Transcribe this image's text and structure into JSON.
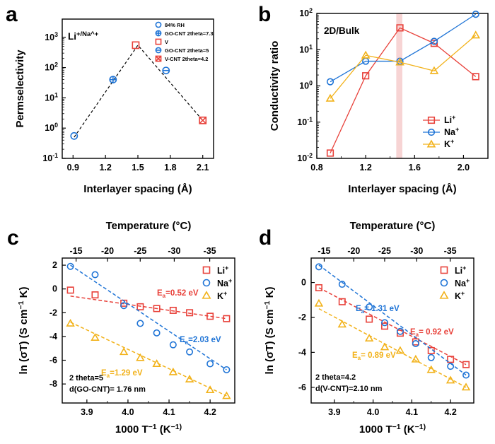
{
  "colors": {
    "li": "#e8413a",
    "na": "#1f74d6",
    "k": "#f2b21a",
    "highlight": "#f7d4d4",
    "frame": "#000000"
  },
  "chart_data": [
    {
      "panel": "a",
      "type": "scatter",
      "inset_title": "Li+/Na+",
      "xlabel": "Interlayer spacing (Å)",
      "ylabel": "Permselectivity",
      "xlim": [
        0.8,
        2.2
      ],
      "ylim": [
        0.1,
        4000
      ],
      "yscale": "log",
      "xticks": [
        "0.9",
        "1.2",
        "1.5",
        "1.8",
        "2.1"
      ],
      "yticks": [
        "10-1",
        "100",
        "101",
        "102",
        "103"
      ],
      "legend_position": "top-right",
      "trend_line": {
        "style": "dashed",
        "x": [
          0.91,
          1.5,
          2.1
        ],
        "y": [
          0.5,
          550,
          1.8
        ]
      },
      "series": [
        {
          "name": "84% RH",
          "marker": "circle",
          "color": "#1f74d6",
          "x": [
            0.91
          ],
          "y": [
            0.55
          ]
        },
        {
          "name": "GO-CNT 2theta=7.3",
          "marker": "circle-plus",
          "color": "#1f74d6",
          "x": [
            1.27
          ],
          "y": [
            40
          ]
        },
        {
          "name": "V",
          "marker": "square",
          "color": "#e8413a",
          "x": [
            1.48
          ],
          "y": [
            550
          ]
        },
        {
          "name": "GO-CNT 2theta=5",
          "marker": "circle-minus",
          "color": "#1f74d6",
          "x": [
            1.76
          ],
          "y": [
            80
          ]
        },
        {
          "name": "V-CNT 2theta=4.2",
          "marker": "square-x",
          "color": "#e8413a",
          "x": [
            2.1
          ],
          "y": [
            1.8
          ]
        }
      ]
    },
    {
      "panel": "b",
      "type": "line",
      "inset_title": "2D/Bulk",
      "xlabel": "Interlayer spacing (Å)",
      "ylabel": "Conductivity ratio",
      "xlim": [
        0.8,
        2.2
      ],
      "ylim": [
        0.01,
        100
      ],
      "yscale": "log",
      "xticks": [
        "0.8",
        "1.2",
        "1.6",
        "2.0"
      ],
      "yticks": [
        "10-2",
        "10-1",
        "100",
        "101",
        "102"
      ],
      "highlight_band": [
        1.45,
        1.5
      ],
      "legend_position": "bottom-right",
      "series": [
        {
          "name": "Li+",
          "marker": "square",
          "color": "#e8413a",
          "x": [
            0.91,
            1.2,
            1.48,
            1.76,
            2.1
          ],
          "y": [
            0.014,
            1.9,
            40,
            15,
            1.8
          ]
        },
        {
          "name": "Na+",
          "marker": "circle",
          "color": "#1f74d6",
          "x": [
            0.91,
            1.2,
            1.48,
            1.76,
            2.1
          ],
          "y": [
            1.3,
            4.8,
            4.8,
            17,
            95
          ]
        },
        {
          "name": "K+",
          "marker": "triangle",
          "color": "#f2b21a",
          "x": [
            0.91,
            1.2,
            1.48,
            1.76,
            2.1
          ],
          "y": [
            0.45,
            7,
            4.5,
            2.6,
            25
          ]
        }
      ]
    },
    {
      "panel": "c",
      "type": "scatter",
      "xlabel": "1000 T−1 (K−1)",
      "ylabel": "ln (σT) (S cm−1 K)",
      "top_xlabel": "Temperature (°C)",
      "xlim": [
        3.84,
        4.26
      ],
      "ylim": [
        -9.6,
        2.6
      ],
      "xticks": [
        "3.9",
        "4.0",
        "4.1",
        "4.2"
      ],
      "yticks": [
        "2",
        "0",
        "-2",
        "-4",
        "-6",
        "-8"
      ],
      "top_xticks": [
        "-15",
        "-20",
        "-25",
        "-30",
        "-35"
      ],
      "legend_position": "top-right",
      "notes": [
        "2 theta=5",
        "d(GO-CNT)= 1.76 nm"
      ],
      "annotations": [
        {
          "series": "Li+",
          "text": "Ea=0.52 eV"
        },
        {
          "series": "Na+",
          "text": "Ea=2.03 eV"
        },
        {
          "series": "K+",
          "text": "Ea=1.29 eV"
        }
      ],
      "series": [
        {
          "name": "Li+",
          "marker": "square",
          "color": "#e8413a",
          "x": [
            3.86,
            3.92,
            3.99,
            4.03,
            4.07,
            4.11,
            4.15,
            4.2,
            4.24
          ],
          "y": [
            -0.1,
            -0.5,
            -1.2,
            -1.5,
            -1.65,
            -1.8,
            -2.0,
            -2.3,
            -2.5
          ],
          "fit": [
            [
              3.86,
              -0.6
            ],
            [
              4.24,
              -2.5
            ]
          ]
        },
        {
          "name": "Na+",
          "marker": "circle",
          "color": "#1f74d6",
          "x": [
            3.86,
            3.92,
            3.99,
            4.03,
            4.07,
            4.11,
            4.15,
            4.2,
            4.24
          ],
          "y": [
            1.9,
            1.2,
            -1.4,
            -2.9,
            -3.7,
            -4.7,
            -5.3,
            -6.3,
            -6.8
          ],
          "fit": [
            [
              3.86,
              2.0
            ],
            [
              4.24,
              -6.8
            ]
          ]
        },
        {
          "name": "K+",
          "marker": "triangle",
          "color": "#f2b21a",
          "x": [
            3.86,
            3.92,
            3.99,
            4.03,
            4.07,
            4.11,
            4.15,
            4.2,
            4.24
          ],
          "y": [
            -2.9,
            -4.1,
            -5.3,
            -5.8,
            -6.3,
            -7.0,
            -7.6,
            -8.5,
            -9.0
          ],
          "fit": [
            [
              3.86,
              -2.8
            ],
            [
              4.24,
              -9.0
            ]
          ]
        }
      ]
    },
    {
      "panel": "d",
      "type": "scatter",
      "xlabel": "1000 T−1 (K−1)",
      "ylabel": "ln (σT) (S cm−1 K)",
      "top_xlabel": "Temperature (°C)",
      "xlim": [
        3.84,
        4.26
      ],
      "ylim": [
        -6.9,
        1.4
      ],
      "xticks": [
        "3.9",
        "4.0",
        "4.1",
        "4.2"
      ],
      "yticks": [
        "0",
        "-2",
        "-4",
        "-6"
      ],
      "top_xticks": [
        "-15",
        "-20",
        "-25",
        "-30",
        "-35"
      ],
      "legend_position": "top-right",
      "notes": [
        "2 theta=4.2",
        "d(V-CNT)=2.10 nm"
      ],
      "annotations": [
        {
          "series": "Na+",
          "text": "Ea= 1.31 eV"
        },
        {
          "series": "Li+",
          "text": "Ea= 0.92 eV"
        },
        {
          "series": "K+",
          "text": "Ea= 0.89 eV"
        }
      ],
      "series": [
        {
          "name": "Li+",
          "marker": "square",
          "color": "#e8413a",
          "x": [
            3.86,
            3.92,
            3.99,
            4.03,
            4.07,
            4.11,
            4.15,
            4.2,
            4.24
          ],
          "y": [
            -0.3,
            -1.1,
            -2.1,
            -2.5,
            -2.9,
            -3.4,
            -3.9,
            -4.4,
            -4.7
          ],
          "fit": [
            [
              3.86,
              -0.3
            ],
            [
              4.24,
              -4.7
            ]
          ]
        },
        {
          "name": "Na+",
          "marker": "circle",
          "color": "#1f74d6",
          "x": [
            3.86,
            3.92,
            3.99,
            4.03,
            4.07,
            4.11,
            4.15,
            4.2,
            4.24
          ],
          "y": [
            0.9,
            -0.1,
            -1.4,
            -2.3,
            -2.8,
            -3.5,
            -4.3,
            -4.8,
            -5.3
          ],
          "fit": [
            [
              3.86,
              1.0
            ],
            [
              4.24,
              -5.3
            ]
          ]
        },
        {
          "name": "K+",
          "marker": "triangle",
          "color": "#f2b21a",
          "x": [
            3.86,
            3.92,
            3.99,
            4.03,
            4.07,
            4.11,
            4.15,
            4.2,
            4.24
          ],
          "y": [
            -1.2,
            -2.4,
            -3.2,
            -3.7,
            -3.9,
            -4.4,
            -5.0,
            -5.6,
            -6.0
          ],
          "fit": [
            [
              3.86,
              -1.5
            ],
            [
              4.24,
              -6.0
            ]
          ]
        }
      ]
    }
  ]
}
